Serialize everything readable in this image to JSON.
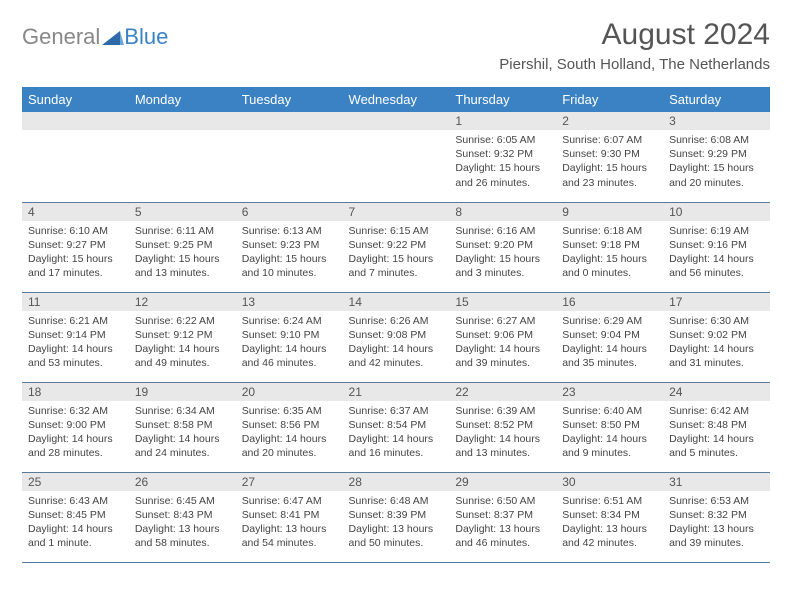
{
  "logo": {
    "general": "General",
    "blue": "Blue"
  },
  "header": {
    "month_title": "August 2024",
    "location": "Piershil, South Holland, The Netherlands"
  },
  "columns": [
    "Sunday",
    "Monday",
    "Tuesday",
    "Wednesday",
    "Thursday",
    "Friday",
    "Saturday"
  ],
  "colors": {
    "header_bg": "#3b82c4",
    "header_fg": "#ffffff",
    "daynum_bg": "#e8e8e8",
    "border": "#5a7a9a",
    "text": "#444444",
    "logo_gray": "#888888",
    "logo_blue": "#3b82c4"
  },
  "type": "calendar-table",
  "weeks": [
    [
      null,
      null,
      null,
      null,
      {
        "n": "1",
        "sr": "Sunrise: 6:05 AM",
        "ss": "Sunset: 9:32 PM",
        "d1": "Daylight: 15 hours",
        "d2": "and 26 minutes."
      },
      {
        "n": "2",
        "sr": "Sunrise: 6:07 AM",
        "ss": "Sunset: 9:30 PM",
        "d1": "Daylight: 15 hours",
        "d2": "and 23 minutes."
      },
      {
        "n": "3",
        "sr": "Sunrise: 6:08 AM",
        "ss": "Sunset: 9:29 PM",
        "d1": "Daylight: 15 hours",
        "d2": "and 20 minutes."
      }
    ],
    [
      {
        "n": "4",
        "sr": "Sunrise: 6:10 AM",
        "ss": "Sunset: 9:27 PM",
        "d1": "Daylight: 15 hours",
        "d2": "and 17 minutes."
      },
      {
        "n": "5",
        "sr": "Sunrise: 6:11 AM",
        "ss": "Sunset: 9:25 PM",
        "d1": "Daylight: 15 hours",
        "d2": "and 13 minutes."
      },
      {
        "n": "6",
        "sr": "Sunrise: 6:13 AM",
        "ss": "Sunset: 9:23 PM",
        "d1": "Daylight: 15 hours",
        "d2": "and 10 minutes."
      },
      {
        "n": "7",
        "sr": "Sunrise: 6:15 AM",
        "ss": "Sunset: 9:22 PM",
        "d1": "Daylight: 15 hours",
        "d2": "and 7 minutes."
      },
      {
        "n": "8",
        "sr": "Sunrise: 6:16 AM",
        "ss": "Sunset: 9:20 PM",
        "d1": "Daylight: 15 hours",
        "d2": "and 3 minutes."
      },
      {
        "n": "9",
        "sr": "Sunrise: 6:18 AM",
        "ss": "Sunset: 9:18 PM",
        "d1": "Daylight: 15 hours",
        "d2": "and 0 minutes."
      },
      {
        "n": "10",
        "sr": "Sunrise: 6:19 AM",
        "ss": "Sunset: 9:16 PM",
        "d1": "Daylight: 14 hours",
        "d2": "and 56 minutes."
      }
    ],
    [
      {
        "n": "11",
        "sr": "Sunrise: 6:21 AM",
        "ss": "Sunset: 9:14 PM",
        "d1": "Daylight: 14 hours",
        "d2": "and 53 minutes."
      },
      {
        "n": "12",
        "sr": "Sunrise: 6:22 AM",
        "ss": "Sunset: 9:12 PM",
        "d1": "Daylight: 14 hours",
        "d2": "and 49 minutes."
      },
      {
        "n": "13",
        "sr": "Sunrise: 6:24 AM",
        "ss": "Sunset: 9:10 PM",
        "d1": "Daylight: 14 hours",
        "d2": "and 46 minutes."
      },
      {
        "n": "14",
        "sr": "Sunrise: 6:26 AM",
        "ss": "Sunset: 9:08 PM",
        "d1": "Daylight: 14 hours",
        "d2": "and 42 minutes."
      },
      {
        "n": "15",
        "sr": "Sunrise: 6:27 AM",
        "ss": "Sunset: 9:06 PM",
        "d1": "Daylight: 14 hours",
        "d2": "and 39 minutes."
      },
      {
        "n": "16",
        "sr": "Sunrise: 6:29 AM",
        "ss": "Sunset: 9:04 PM",
        "d1": "Daylight: 14 hours",
        "d2": "and 35 minutes."
      },
      {
        "n": "17",
        "sr": "Sunrise: 6:30 AM",
        "ss": "Sunset: 9:02 PM",
        "d1": "Daylight: 14 hours",
        "d2": "and 31 minutes."
      }
    ],
    [
      {
        "n": "18",
        "sr": "Sunrise: 6:32 AM",
        "ss": "Sunset: 9:00 PM",
        "d1": "Daylight: 14 hours",
        "d2": "and 28 minutes."
      },
      {
        "n": "19",
        "sr": "Sunrise: 6:34 AM",
        "ss": "Sunset: 8:58 PM",
        "d1": "Daylight: 14 hours",
        "d2": "and 24 minutes."
      },
      {
        "n": "20",
        "sr": "Sunrise: 6:35 AM",
        "ss": "Sunset: 8:56 PM",
        "d1": "Daylight: 14 hours",
        "d2": "and 20 minutes."
      },
      {
        "n": "21",
        "sr": "Sunrise: 6:37 AM",
        "ss": "Sunset: 8:54 PM",
        "d1": "Daylight: 14 hours",
        "d2": "and 16 minutes."
      },
      {
        "n": "22",
        "sr": "Sunrise: 6:39 AM",
        "ss": "Sunset: 8:52 PM",
        "d1": "Daylight: 14 hours",
        "d2": "and 13 minutes."
      },
      {
        "n": "23",
        "sr": "Sunrise: 6:40 AM",
        "ss": "Sunset: 8:50 PM",
        "d1": "Daylight: 14 hours",
        "d2": "and 9 minutes."
      },
      {
        "n": "24",
        "sr": "Sunrise: 6:42 AM",
        "ss": "Sunset: 8:48 PM",
        "d1": "Daylight: 14 hours",
        "d2": "and 5 minutes."
      }
    ],
    [
      {
        "n": "25",
        "sr": "Sunrise: 6:43 AM",
        "ss": "Sunset: 8:45 PM",
        "d1": "Daylight: 14 hours",
        "d2": "and 1 minute."
      },
      {
        "n": "26",
        "sr": "Sunrise: 6:45 AM",
        "ss": "Sunset: 8:43 PM",
        "d1": "Daylight: 13 hours",
        "d2": "and 58 minutes."
      },
      {
        "n": "27",
        "sr": "Sunrise: 6:47 AM",
        "ss": "Sunset: 8:41 PM",
        "d1": "Daylight: 13 hours",
        "d2": "and 54 minutes."
      },
      {
        "n": "28",
        "sr": "Sunrise: 6:48 AM",
        "ss": "Sunset: 8:39 PM",
        "d1": "Daylight: 13 hours",
        "d2": "and 50 minutes."
      },
      {
        "n": "29",
        "sr": "Sunrise: 6:50 AM",
        "ss": "Sunset: 8:37 PM",
        "d1": "Daylight: 13 hours",
        "d2": "and 46 minutes."
      },
      {
        "n": "30",
        "sr": "Sunrise: 6:51 AM",
        "ss": "Sunset: 8:34 PM",
        "d1": "Daylight: 13 hours",
        "d2": "and 42 minutes."
      },
      {
        "n": "31",
        "sr": "Sunrise: 6:53 AM",
        "ss": "Sunset: 8:32 PM",
        "d1": "Daylight: 13 hours",
        "d2": "and 39 minutes."
      }
    ]
  ]
}
